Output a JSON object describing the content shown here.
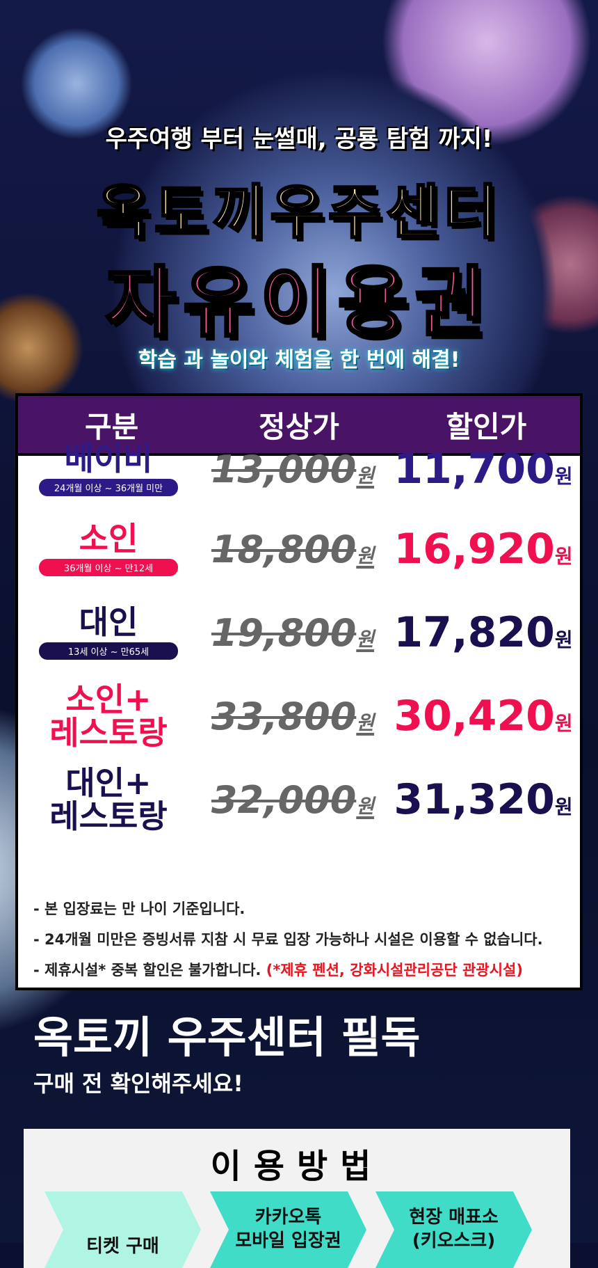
{
  "hero": {
    "tagline": "우주여행 부터 눈썰매, 공룡 탐험 까지!",
    "title": "옥토끼우주센터",
    "subtitle": "자유이용권",
    "slogan": "학습 과 놀이와 체험을 한 번에 해결!"
  },
  "table": {
    "headers": [
      "구분",
      "정상가",
      "할인가"
    ],
    "rows": [
      {
        "category": "베이비",
        "badge": "24개월 이상 ~ 36개월 미만",
        "regular": "13,000",
        "sale": "11,700",
        "color": "#2e1a87"
      },
      {
        "category": "소인",
        "badge": "36개월 이상 ~ 만12세",
        "regular": "18,800",
        "sale": "16,920",
        "color": "#f0104f"
      },
      {
        "category": "대인",
        "badge": "13세 이상 ~ 만65세",
        "regular": "19,800",
        "sale": "17,820",
        "color": "#1a0f4f"
      },
      {
        "category": "소인+\n레스토랑",
        "regular": "33,800",
        "sale": "30,420",
        "color": "#f0104f"
      },
      {
        "category": "대인+\n레스토랑",
        "regular": "32,000",
        "sale": "31,320",
        "color": "#1a0f4f"
      }
    ],
    "currency": "원",
    "notes": [
      "- 본 입장료는 만 나이 기준입니다.",
      "- 24개월 미만은 증빙서류 지참 시 무료 입장 가능하나 시설은 이용할 수 없습니다.",
      "- 제휴시설* 중복 할인은 불가합니다."
    ],
    "note_highlight": "(*제휴 펜션, 강화시설관리공단 관광시설)"
  },
  "must_read": {
    "title": "옥토끼 우주센터 필독",
    "subtitle": "구매 전 확인해주세요!"
  },
  "usage": {
    "title": "이용방법",
    "steps": [
      "티켓 구매",
      "카카오톡\n모바일 입장권",
      "현장 매표소\n(키오스크)"
    ],
    "colors": [
      "#b0f5e4",
      "#40dcc8",
      "#40dcc8"
    ]
  }
}
